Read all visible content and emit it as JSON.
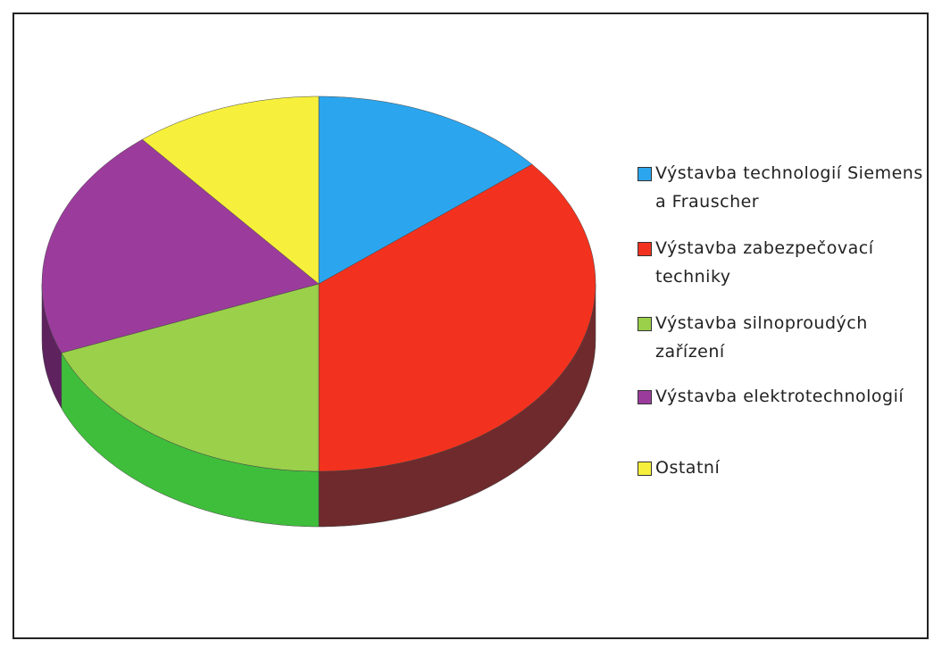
{
  "chart_data": {
    "type": "pie",
    "categories": [
      "Výstavba technologií Siemens a Frauscher",
      "Výstavba zabezpečovací techniky",
      "Výstavba silnoproudých zařízení",
      "Výstavba elektrotechnologií",
      "Ostatní"
    ],
    "values": [
      14,
      36,
      19,
      20,
      11
    ],
    "colors": [
      "#2ba6ee",
      "#f2321f",
      "#9ad04a",
      "#9b3c9c",
      "#f6f03c"
    ],
    "side_colors": [
      "#1a6a9a",
      "#6e2a2c",
      "#3fbe3c",
      "#5e235e",
      "#9a9622"
    ],
    "legend": "right"
  }
}
